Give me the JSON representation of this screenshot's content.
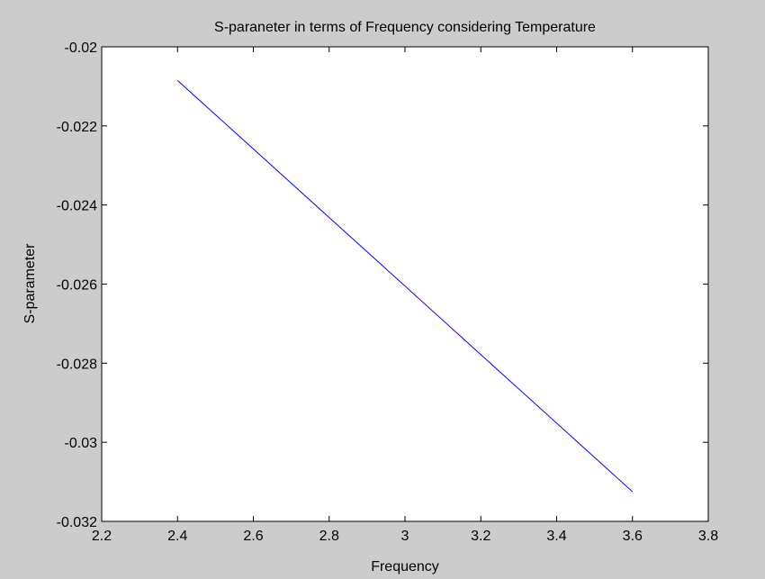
{
  "chart_data": {
    "type": "line",
    "title": "S-paraneter in terms of Frequency considering Temperature",
    "xlabel": "Frequency",
    "ylabel": "S-parameter",
    "xlim": [
      2.2,
      3.8
    ],
    "ylim": [
      -0.032,
      -0.02
    ],
    "x_ticks": [
      2.2,
      2.4,
      2.6,
      2.8,
      3.0,
      3.2,
      3.4,
      3.6,
      3.8
    ],
    "x_tick_labels": [
      "2.2",
      "2.4",
      "2.6",
      "2.8",
      "3",
      "3.2",
      "3.4",
      "3.6",
      "3.8"
    ],
    "y_ticks": [
      -0.032,
      -0.03,
      -0.028,
      -0.026,
      -0.024,
      -0.022,
      -0.02
    ],
    "y_tick_labels": [
      "-0.032",
      "-0.03",
      "-0.028",
      "-0.026",
      "-0.024",
      "-0.022",
      "-0.02"
    ],
    "grid": false,
    "series": [
      {
        "color": "#0000ff",
        "x": [
          2.4,
          3.6
        ],
        "y": [
          -0.02085,
          -0.03125
        ]
      }
    ]
  },
  "colors": {
    "figure_background": "#cccccc",
    "axes_background": "#ffffff",
    "line": "#0000ff"
  }
}
